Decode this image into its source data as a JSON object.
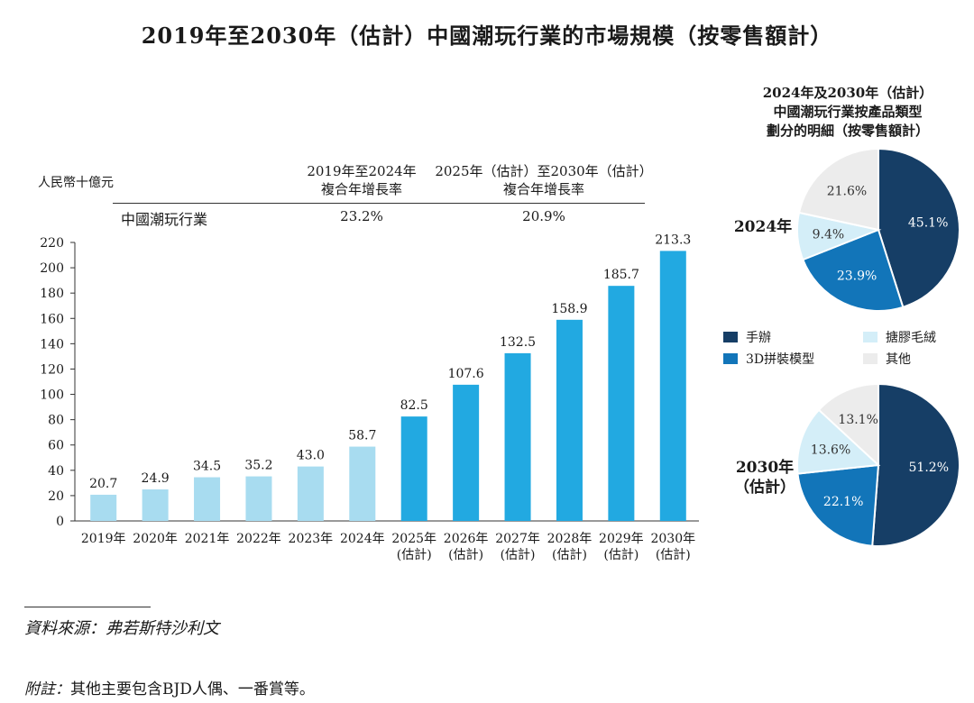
{
  "title": "2019年至2030年（估計）中國潮玩行業的市場規模（按零售額計）",
  "unit_label": "人民幣十億元",
  "cagr": {
    "header_1": [
      "2019年至2024年",
      "複合年增長率"
    ],
    "header_2": [
      "2025年（估計）至2030年（估計）",
      "複合年增長率"
    ],
    "row_label": "中國潮玩行業",
    "value_1": "23.2%",
    "value_2": "20.9%"
  },
  "chart_data": [
    {
      "type": "bar",
      "title": "2019年至2030年（估計）中國潮玩行業的市場規模（按零售額計）",
      "ylabel": "人民幣十億元",
      "ylim": [
        0,
        220
      ],
      "yticks": [
        0,
        20,
        40,
        60,
        80,
        100,
        120,
        140,
        160,
        180,
        200,
        220
      ],
      "categories": [
        [
          "2019年"
        ],
        [
          "2020年"
        ],
        [
          "2021年"
        ],
        [
          "2022年"
        ],
        [
          "2023年"
        ],
        [
          "2024年"
        ],
        [
          "2025年",
          "(估計)"
        ],
        [
          "2026年",
          "(估計)"
        ],
        [
          "2027年",
          "(估計)"
        ],
        [
          "2028年",
          "(估計)"
        ],
        [
          "2029年",
          "(估計)"
        ],
        [
          "2030年",
          "(估計)"
        ]
      ],
      "values": [
        20.7,
        24.9,
        34.5,
        35.2,
        43.0,
        58.7,
        82.5,
        107.6,
        132.5,
        158.9,
        185.7,
        213.3
      ],
      "value_labels": [
        "20.7",
        "24.9",
        "34.5",
        "35.2",
        "43.0",
        "58.7",
        "82.5",
        "107.6",
        "132.5",
        "158.9",
        "185.7",
        "213.3"
      ],
      "colors": {
        "historical": "#a8dcf0",
        "forecast": "#22a9e1"
      }
    },
    {
      "type": "pie",
      "title": [
        "2024年及2030年（估計）",
        "中國潮玩行業按產品類型",
        "劃分的明細（按零售額計）"
      ],
      "label": [
        "2024年"
      ],
      "slices": [
        {
          "name": "手辦",
          "value": 45.1,
          "label": "45.1%",
          "color": "#163e66"
        },
        {
          "name": "3D拼裝模型",
          "value": 23.9,
          "label": "23.9%",
          "color": "#1275b9"
        },
        {
          "name": "搪膠毛絨",
          "value": 9.4,
          "label": "9.4%",
          "color": "#d4eef8"
        },
        {
          "name": "其他",
          "value": 21.6,
          "label": "21.6%",
          "color": "#ececec"
        }
      ]
    },
    {
      "type": "pie",
      "label": [
        "2030年",
        "（估計）"
      ],
      "slices": [
        {
          "name": "手辦",
          "value": 51.2,
          "label": "51.2%",
          "color": "#163e66"
        },
        {
          "name": "3D拼裝模型",
          "value": 22.1,
          "label": "22.1%",
          "color": "#1275b9"
        },
        {
          "name": "搪膠毛絨",
          "value": 13.6,
          "label": "13.6%",
          "color": "#d4eef8"
        },
        {
          "name": "其他",
          "value": 13.1,
          "label": "13.1%",
          "color": "#ececec"
        }
      ]
    }
  ],
  "legend": [
    {
      "name": "手辦",
      "color": "#163e66"
    },
    {
      "name": "搪膠毛絨",
      "color": "#d4eef8"
    },
    {
      "name": "3D拼裝模型",
      "color": "#1275b9"
    },
    {
      "name": "其他",
      "color": "#ececec"
    }
  ],
  "source": "資料來源：弗若斯特沙利文",
  "note": {
    "prefix": "附註：",
    "text": "其他主要包含BJD人偶、一番賞等。"
  }
}
